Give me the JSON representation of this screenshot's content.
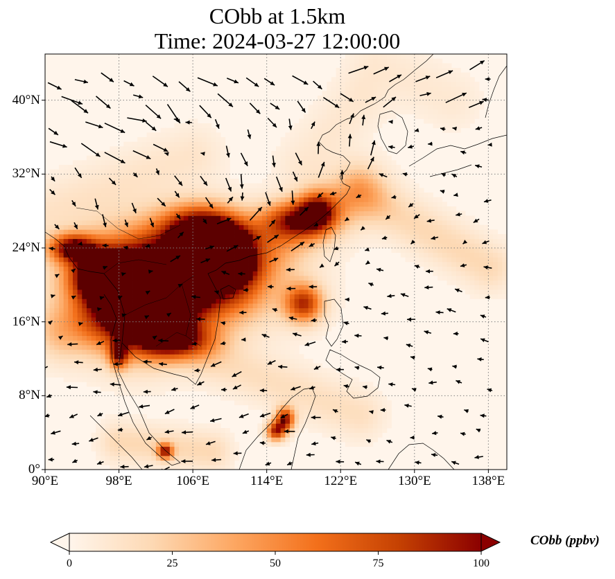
{
  "title": {
    "line1": "CObb at 1.5km",
    "line2": "Time: 2024-03-27 12:00:00"
  },
  "map": {
    "projection": "PlateCarree",
    "lon_range": [
      90,
      140
    ],
    "lat_range": [
      0,
      45
    ],
    "gridlines": "dotted",
    "lon_ticks": [
      {
        "value": 90,
        "label": "90°E"
      },
      {
        "value": 98,
        "label": "98°E"
      },
      {
        "value": 106,
        "label": "106°E"
      },
      {
        "value": 114,
        "label": "114°E"
      },
      {
        "value": 122,
        "label": "122°E"
      },
      {
        "value": 130,
        "label": "130°E"
      },
      {
        "value": 138,
        "label": "138°E"
      }
    ],
    "lat_ticks": [
      {
        "value": 0,
        "label": "0°"
      },
      {
        "value": 8,
        "label": "8°N"
      },
      {
        "value": 16,
        "label": "16°N"
      },
      {
        "value": 24,
        "label": "24°N"
      },
      {
        "value": 32,
        "label": "32°N"
      },
      {
        "value": 40,
        "label": "40°N"
      }
    ],
    "field_hotspots": [
      {
        "lon": 104,
        "lat": 21,
        "rlon": 9,
        "rlat": 5,
        "value": 120
      },
      {
        "lon": 100,
        "lat": 18,
        "rlon": 5,
        "rlat": 5,
        "value": 110
      },
      {
        "lon": 107,
        "lat": 26,
        "rlon": 4,
        "rlat": 2.5,
        "value": 110
      },
      {
        "lon": 96,
        "lat": 21,
        "rlon": 3,
        "rlat": 2.5,
        "value": 100
      },
      {
        "lon": 93,
        "lat": 24,
        "rlon": 2.5,
        "rlat": 1.5,
        "value": 95
      },
      {
        "lon": 104,
        "lat": 14,
        "rlon": 4,
        "rlat": 2,
        "value": 90
      },
      {
        "lon": 110,
        "lat": 24.5,
        "rlon": 2.5,
        "rlat": 2,
        "value": 75
      },
      {
        "lon": 117,
        "lat": 27,
        "rlon": 3.5,
        "rlat": 2,
        "value": 70
      },
      {
        "lon": 119.5,
        "lat": 28,
        "rlon": 2,
        "rlat": 2,
        "value": 75
      },
      {
        "lon": 118,
        "lat": 18,
        "rlon": 2,
        "rlat": 2,
        "value": 80
      },
      {
        "lon": 116,
        "lat": 5.5,
        "rlon": 1,
        "rlat": 1.2,
        "value": 90
      },
      {
        "lon": 115,
        "lat": 4.2,
        "rlon": 1,
        "rlat": 1,
        "value": 85
      },
      {
        "lon": 103,
        "lat": 2,
        "rlon": 0.8,
        "rlat": 0.8,
        "value": 85
      },
      {
        "lon": 98,
        "lat": 12.5,
        "rlon": 1,
        "rlat": 1.5,
        "value": 75
      },
      {
        "lon": 110,
        "lat": 22,
        "rlon": 2.5,
        "rlat": 1.5,
        "value": 60
      }
    ],
    "field_plumes": [
      {
        "lon0": 92,
        "lat0": 15,
        "lon1": 110,
        "lat1": 20,
        "width": 3,
        "value": 30
      },
      {
        "lon0": 112,
        "lat0": 23,
        "lon1": 124,
        "lat1": 30,
        "width": 3,
        "value": 30
      },
      {
        "lon0": 124,
        "lat0": 30,
        "lon1": 138,
        "lat1": 22,
        "width": 2.5,
        "value": 18
      },
      {
        "lon0": 108,
        "lat0": 12,
        "lon1": 124,
        "lat1": 6,
        "width": 2.5,
        "value": 14
      },
      {
        "lon0": 98,
        "lat0": 3,
        "lon1": 108,
        "lat1": 2,
        "width": 2,
        "value": 18
      },
      {
        "lon0": 90,
        "lat0": 28,
        "lon1": 106,
        "lat1": 34,
        "width": 3,
        "value": 10
      },
      {
        "lon0": 118,
        "lat0": 33,
        "lon1": 124,
        "lat1": 40,
        "width": 3,
        "value": 8
      },
      {
        "lon0": 126,
        "lat0": 44,
        "lon1": 134,
        "lat1": 40,
        "width": 3,
        "value": 7
      }
    ],
    "wind_field": [
      {
        "lon0": 90,
        "lat0": 34,
        "lon1": 103,
        "lat1": 45,
        "u": 1.8,
        "v": -0.9
      },
      {
        "lon0": 103,
        "lat0": 38,
        "lon1": 122,
        "lat1": 45,
        "u": 1.6,
        "v": -1.3
      },
      {
        "lon0": 122,
        "lat0": 38,
        "lon1": 136,
        "lat1": 45,
        "u": 1.8,
        "v": 1.0
      },
      {
        "lon0": 108,
        "lat0": 30,
        "lon1": 118,
        "lat1": 38,
        "u": 0.3,
        "v": -1.4
      },
      {
        "lon0": 118,
        "lat0": 30,
        "lon1": 126,
        "lat1": 38,
        "u": 0.3,
        "v": 1.5
      },
      {
        "lon0": 126,
        "lat0": 30,
        "lon1": 140,
        "lat1": 34,
        "u": -0.8,
        "v": 0.2
      },
      {
        "lon0": 90,
        "lat0": 26,
        "lon1": 108,
        "lat1": 34,
        "u": 0.6,
        "v": -1.0
      },
      {
        "lon0": 102,
        "lat0": 22,
        "lon1": 118,
        "lat1": 30,
        "u": 1.3,
        "v": 0.9
      },
      {
        "lon0": 118,
        "lat0": 22,
        "lon1": 140,
        "lat1": 30,
        "u": -0.6,
        "v": -0.3
      },
      {
        "lon0": 90,
        "lat0": 14,
        "lon1": 106,
        "lat1": 22,
        "u": 0.4,
        "v": 0.2
      },
      {
        "lon0": 106,
        "lat0": 14,
        "lon1": 140,
        "lat1": 22,
        "u": -0.8,
        "v": 0.1
      },
      {
        "lon0": 90,
        "lat0": 0,
        "lon1": 120,
        "lat1": 14,
        "u": -1.0,
        "v": -0.2
      },
      {
        "lon0": 120,
        "lat0": 0,
        "lon1": 140,
        "lat1": 14,
        "u": -0.8,
        "v": 0.1
      }
    ]
  },
  "colorbar": {
    "label": "CObb (ppbv)",
    "min": 0,
    "max": 100,
    "extend": "both",
    "ticks": [
      {
        "value": 0,
        "label": "0"
      },
      {
        "value": 25,
        "label": "25"
      },
      {
        "value": 50,
        "label": "50"
      },
      {
        "value": 75,
        "label": "75"
      },
      {
        "value": 100,
        "label": "100"
      }
    ],
    "colors": [
      "#fff5eb",
      "#fdd9b4",
      "#fda762",
      "#f3701b",
      "#c54102",
      "#8b0000",
      "#5c0000"
    ]
  }
}
